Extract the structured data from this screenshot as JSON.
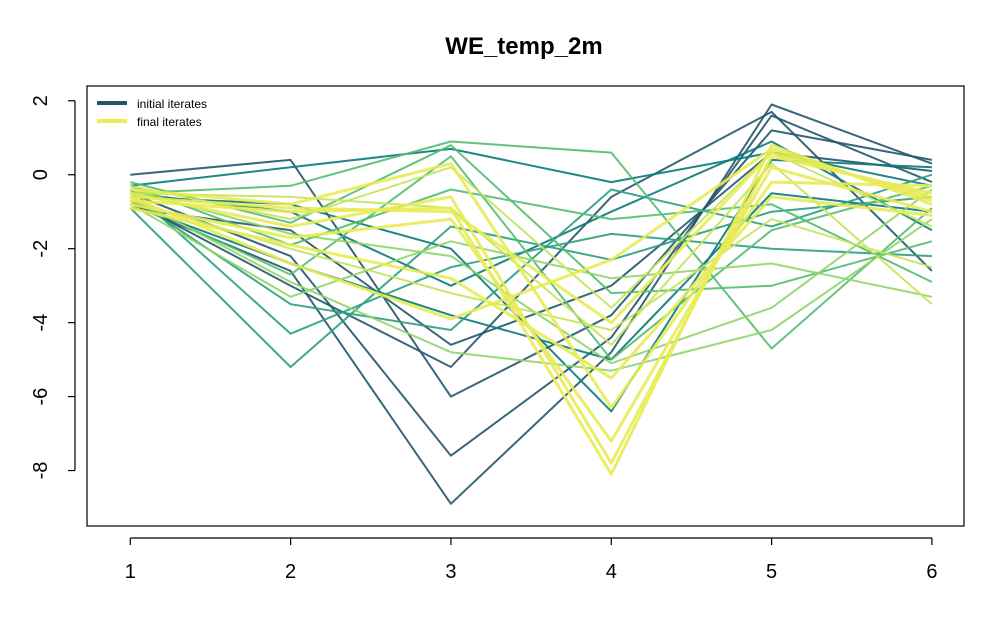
{
  "chart_data": {
    "type": "line",
    "title": "WE_temp_2m",
    "xlabel": "",
    "ylabel": "",
    "x": [
      1,
      2,
      3,
      4,
      5,
      6
    ],
    "xlim": [
      0.73,
      6.2
    ],
    "ylim": [
      -9.5,
      2.4
    ],
    "xticks": [
      1,
      2,
      3,
      4,
      5,
      6
    ],
    "xtick_labels": [
      "1",
      "2",
      "3",
      "4",
      "5",
      "6"
    ],
    "yticks": [
      2,
      0,
      -2,
      -4,
      -6,
      -8
    ],
    "ytick_labels": [
      "2",
      "0",
      "-2",
      "-4",
      "-6",
      "-8"
    ],
    "grid": false,
    "legend": {
      "position": "top-left",
      "entries": [
        {
          "label": "initial iterates",
          "color": "#23566b"
        },
        {
          "label": "final iterates",
          "color": "#e8eb55"
        }
      ]
    },
    "color_gradient": [
      "#23566b",
      "#087a7a",
      "#2b9f7e",
      "#52bc6e",
      "#8ed567",
      "#c6e35a",
      "#e8eb55"
    ],
    "series": [
      {
        "group": "initial",
        "color": "#23566b",
        "values": [
          -0.8,
          -2.6,
          -8.9,
          -4.8,
          1.9,
          0.3
        ]
      },
      {
        "group": "initial",
        "color": "#23566b",
        "values": [
          -0.5,
          -2.2,
          -7.6,
          -4.4,
          1.6,
          -0.2
        ]
      },
      {
        "group": "initial",
        "color": "#23566b",
        "values": [
          0.0,
          0.4,
          -6.0,
          -3.8,
          1.2,
          0.4
        ]
      },
      {
        "group": "initial",
        "color": "#23566b",
        "values": [
          -0.7,
          -3.0,
          -5.2,
          -0.6,
          1.7,
          -2.6
        ]
      },
      {
        "group": "initial",
        "color": "#23566b",
        "values": [
          -0.9,
          -1.5,
          -4.6,
          -3.0,
          0.6,
          0.1
        ]
      },
      {
        "group": "initial",
        "color": "#087a7a",
        "values": [
          -0.3,
          0.2,
          0.7,
          -0.2,
          0.6,
          -0.3
        ]
      },
      {
        "group": "initial",
        "color": "#087a7a",
        "values": [
          -0.6,
          -0.8,
          -2.0,
          -6.4,
          0.4,
          0.2
        ]
      },
      {
        "group": "initial",
        "color": "#087a7a",
        "values": [
          -0.8,
          -2.4,
          -3.8,
          -5.0,
          -0.5,
          -1.0
        ]
      },
      {
        "group": "initial",
        "color": "#087a7a",
        "values": [
          -0.5,
          -1.0,
          -3.0,
          -1.0,
          0.9,
          -1.5
        ]
      },
      {
        "group": "mid",
        "color": "#2b9f7e",
        "values": [
          -0.9,
          -5.2,
          -1.4,
          -2.3,
          -1.0,
          -0.6
        ]
      },
      {
        "group": "mid",
        "color": "#2b9f7e",
        "values": [
          -0.4,
          -4.3,
          -2.5,
          -1.6,
          -2.0,
          -2.2
        ]
      },
      {
        "group": "mid",
        "color": "#2b9f7e",
        "values": [
          -0.6,
          -3.5,
          -4.2,
          -0.4,
          -1.4,
          0.0
        ]
      },
      {
        "group": "mid",
        "color": "#52bc6e",
        "values": [
          -0.2,
          -1.3,
          0.8,
          -3.2,
          -3.0,
          -1.8
        ]
      },
      {
        "group": "mid",
        "color": "#52bc6e",
        "values": [
          -0.5,
          -0.3,
          0.9,
          0.6,
          -4.7,
          -0.9
        ]
      },
      {
        "group": "mid",
        "color": "#52bc6e",
        "values": [
          -0.7,
          -2.7,
          0.5,
          -5.0,
          -1.5,
          -0.3
        ]
      },
      {
        "group": "mid",
        "color": "#52bc6e",
        "values": [
          -0.3,
          -1.9,
          -0.4,
          -1.2,
          -0.8,
          -2.9
        ]
      },
      {
        "group": "late",
        "color": "#8ed567",
        "values": [
          -0.6,
          -2.9,
          -4.8,
          -5.3,
          -4.2,
          -1.2
        ]
      },
      {
        "group": "late",
        "color": "#8ed567",
        "values": [
          -0.4,
          -1.6,
          -2.2,
          -5.1,
          -3.6,
          -0.4
        ]
      },
      {
        "group": "late",
        "color": "#8ed567",
        "values": [
          -0.8,
          -3.3,
          -1.8,
          -2.8,
          -2.4,
          -3.3
        ]
      },
      {
        "group": "late",
        "color": "#c6e35a",
        "values": [
          -0.5,
          -0.6,
          -0.9,
          -4.6,
          0.3,
          -3.5
        ]
      },
      {
        "group": "late",
        "color": "#c6e35a",
        "values": [
          -0.7,
          -2.0,
          -3.2,
          -4.2,
          -1.2,
          -2.5
        ]
      },
      {
        "group": "late",
        "color": "#c6e35a",
        "values": [
          -0.3,
          -1.2,
          0.2,
          -3.6,
          0.6,
          -1.4
        ]
      },
      {
        "group": "final",
        "color": "#e8eb55",
        "values": [
          -0.7,
          -1.0,
          -0.9,
          -8.1,
          0.8,
          -0.8
        ]
      },
      {
        "group": "final",
        "color": "#e8eb55",
        "values": [
          -0.5,
          -1.4,
          -0.6,
          -7.8,
          0.5,
          -0.5
        ]
      },
      {
        "group": "final",
        "color": "#e8eb55",
        "values": [
          -0.8,
          -1.7,
          -1.2,
          -7.2,
          0.2,
          -1.0
        ]
      },
      {
        "group": "final",
        "color": "#e8eb55",
        "values": [
          -0.4,
          -0.8,
          0.3,
          -6.3,
          -0.2,
          -0.3
        ]
      },
      {
        "group": "final",
        "color": "#e8eb55",
        "values": [
          -0.6,
          -2.4,
          -3.9,
          -2.3,
          0.7,
          -0.7
        ]
      },
      {
        "group": "final",
        "color": "#e8eb55",
        "values": [
          -0.9,
          -1.9,
          -2.8,
          -5.5,
          -0.6,
          -1.1
        ]
      },
      {
        "group": "final",
        "color": "#e8eb55",
        "values": [
          -0.6,
          -0.9,
          -1.0,
          -4.0,
          0.6,
          -0.6
        ]
      }
    ]
  }
}
